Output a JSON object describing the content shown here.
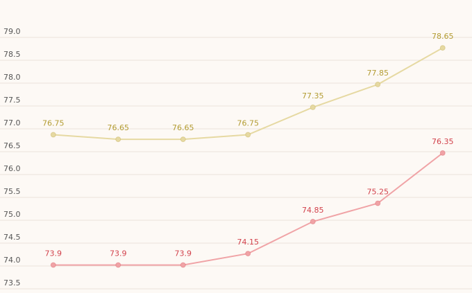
{
  "chart_data": {
    "type": "line",
    "categories": [
      null,
      null,
      null,
      null,
      null,
      null,
      null
    ],
    "series": [
      {
        "color": "#e6d9a2",
        "label_color": "#b39c32",
        "values": [
          76.75,
          76.65,
          76.65,
          76.75,
          77.35,
          77.85,
          78.65
        ]
      },
      {
        "color": "#f0a3a6",
        "label_color": "#d2424c",
        "values": [
          73.9,
          73.9,
          73.9,
          74.15,
          74.85,
          75.25,
          76.35
        ]
      }
    ],
    "ylim": [
      73.5,
      79.0
    ],
    "yticks": [
      {
        "value": 73.5,
        "label": "73.5"
      },
      {
        "value": 74,
        "label": "74.0"
      },
      {
        "value": 74.5,
        "label": "74.5"
      },
      {
        "value": 75,
        "label": "75.0"
      },
      {
        "value": 75.5,
        "label": "75.5"
      },
      {
        "value": 76,
        "label": "76.0"
      },
      {
        "value": 76.5,
        "label": "76.5"
      },
      {
        "value": 77,
        "label": "77.0"
      },
      {
        "value": 77.5,
        "label": "77.5"
      },
      {
        "value": 78,
        "label": "78.0"
      },
      {
        "value": 78.5,
        "label": "78.5"
      },
      {
        "value": 79,
        "label": "79.0"
      }
    ],
    "grid": true
  }
}
